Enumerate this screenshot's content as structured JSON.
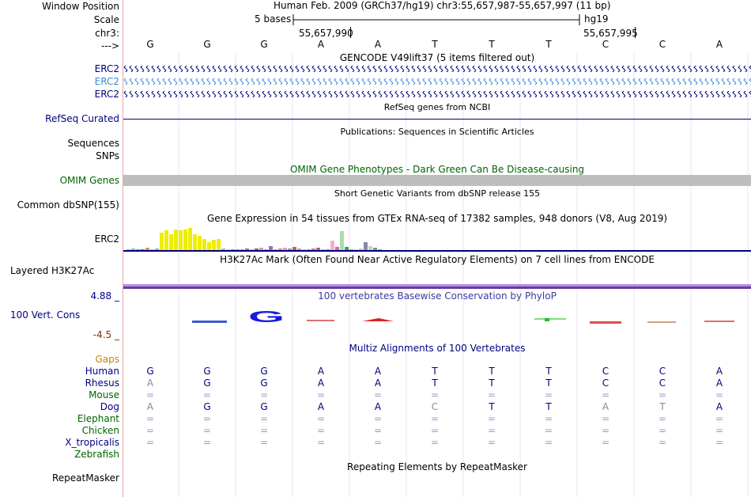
{
  "header": {
    "window_position_label": "Window Position",
    "scale_label": "Scale",
    "chr_label": "chr3:",
    "strand_label": "--->",
    "title": "Human Feb. 2009 (GRCh37/hg19)   chr3:55,657,987-55,657,997 (11 bp)",
    "scale_text": "5 bases",
    "assembly": "hg19",
    "coord1": "55,657,990",
    "coord2": "55,657,995"
  },
  "bases": [
    "G",
    "G",
    "G",
    "A",
    "A",
    "T",
    "T",
    "T",
    "C",
    "C",
    "A"
  ],
  "gencode": {
    "title": "GENCODE V49lift37 (5 items filtered out)",
    "labels": [
      "ERC2",
      "ERC2",
      "ERC2"
    ]
  },
  "refseq": {
    "title": "RefSeq genes from NCBI",
    "label": "RefSeq Curated"
  },
  "publications": {
    "title": "Publications: Sequences in Scientific Articles",
    "label1": "Sequences",
    "label2": "SNPs"
  },
  "omim": {
    "title": "OMIM Gene Phenotypes - Dark Green Can Be Disease-causing",
    "label": "OMIM Genes"
  },
  "dbsnp": {
    "title": "Short Genetic Variants from dbSNP release 155",
    "label": "Common dbSNP(155)"
  },
  "gtex": {
    "title": "Gene Expression in 54 tissues from GTEx RNA-seq of 17382 samples, 948 donors (V8, Aug 2019)",
    "label": "ERC2",
    "values": [
      1,
      2,
      1,
      1,
      3,
      1,
      2,
      22,
      25,
      20,
      26,
      25,
      26,
      28,
      20,
      18,
      14,
      10,
      13,
      14,
      2,
      1,
      1,
      1,
      1,
      2,
      1,
      2,
      3,
      1,
      5,
      1,
      2,
      3,
      2,
      4,
      2,
      1,
      1,
      2,
      3,
      1,
      1,
      12,
      4,
      24,
      4,
      1,
      1,
      2,
      10,
      5,
      3,
      1
    ],
    "colors": [
      "#ff9999",
      "#66cccc",
      "#cc8833",
      "#ff3333",
      "#cc9966",
      "#99cc99",
      "#aaaaaa",
      "#eeee00",
      "#eeee00",
      "#eeee00",
      "#eeee00",
      "#eeee00",
      "#eeee00",
      "#eeee00",
      "#eeee00",
      "#eeee00",
      "#eeee00",
      "#eeee00",
      "#eeee00",
      "#eeee00",
      "#99bbee",
      "#cccccc",
      "#aa8866",
      "#cc88aa",
      "#aaaaaa",
      "#9966cc",
      "#cccc66",
      "#886644",
      "#cc99cc",
      "#99aaaa",
      "#aa66cc",
      "#99cc66",
      "#cc9966",
      "#ee99cc",
      "#999999",
      "#cc6633",
      "#99aacc",
      "#cccc99",
      "#aa88cc",
      "#cc7788",
      "#aa6699",
      "#99cccc",
      "#88aa66",
      "#ffaacc",
      "#cc66aa",
      "#aaddaa",
      "#33aa55",
      "#99aa99",
      "#cccccc",
      "#cccc99",
      "#8888aa",
      "#cccccc",
      "#66aa66",
      "#aa99aa"
    ]
  },
  "h3k27ac": {
    "title": "H3K27Ac Mark (Often Found Near Active Regulatory Elements) on 7 cell lines from ENCODE",
    "label": "Layered H3K27Ac"
  },
  "phylop": {
    "title": "100 vertebrates Basewise Conservation by PhyloP",
    "label": "100 Vert. Cons",
    "max": "4.88 _",
    "min": "-4.5 _"
  },
  "multiz": {
    "title": "Multiz Alignments of 100 Vertebrates",
    "gaps_label": "Gaps",
    "rows": [
      {
        "species": "Human",
        "bases": [
          "G",
          "G",
          "G",
          "A",
          "A",
          "T",
          "T",
          "T",
          "C",
          "C",
          "A"
        ]
      },
      {
        "species": "Rhesus",
        "bases": [
          "A",
          "G",
          "G",
          "A",
          "A",
          "T",
          "T",
          "T",
          "C",
          "C",
          "A"
        ]
      },
      {
        "species": "Mouse",
        "bases": [
          "=",
          "=",
          "=",
          "=",
          "=",
          "=",
          "=",
          "=",
          "=",
          "=",
          "="
        ]
      },
      {
        "species": "Dog",
        "bases": [
          "A",
          "G",
          "G",
          "A",
          "A",
          "C",
          "T",
          "T",
          "A",
          "T",
          "A"
        ]
      },
      {
        "species": "Elephant",
        "bases": [
          "=",
          "=",
          "=",
          "=",
          "=",
          "=",
          "=",
          "=",
          "=",
          "=",
          "="
        ]
      },
      {
        "species": "Chicken",
        "bases": [
          "=",
          "=",
          "=",
          "=",
          "=",
          "=",
          "=",
          "=",
          "=",
          "=",
          "="
        ]
      },
      {
        "species": "X_tropicalis",
        "bases": [
          "=",
          "=",
          "=",
          "=",
          "=",
          "=",
          "=",
          "=",
          "=",
          "=",
          "="
        ]
      },
      {
        "species": "Zebrafish",
        "bases": [
          "",
          "",
          "",
          "",
          "",
          "",
          "",
          "",
          "",
          "",
          ""
        ]
      }
    ]
  },
  "repeatmasker": {
    "title": "Repeating Elements by RepeatMasker",
    "label": "RepeatMasker"
  }
}
